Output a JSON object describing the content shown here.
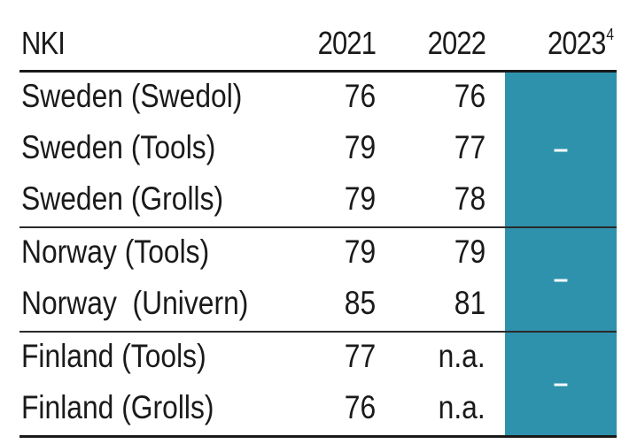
{
  "table": {
    "headers": {
      "label": "NKI",
      "y2021": "2021",
      "y2022": "2022",
      "y2023": "2023",
      "y2023_footnote": "4"
    },
    "groups": [
      {
        "rows": [
          {
            "name": "Sweden (Swedol)",
            "y2021": "76",
            "y2022": "76"
          },
          {
            "name": "Sweden (Tools)",
            "y2021": "79",
            "y2022": "77"
          },
          {
            "name": "Sweden (Grolls)",
            "y2021": "79",
            "y2022": "78"
          }
        ],
        "y2023": "–"
      },
      {
        "rows": [
          {
            "name": "Norway (Tools)",
            "y2021": "79",
            "y2022": "79"
          },
          {
            "name": "Norway  (Univern)",
            "y2021": "85",
            "y2022": "81"
          }
        ],
        "y2023": "–"
      },
      {
        "rows": [
          {
            "name": "Finland (Tools)",
            "y2021": "77",
            "y2022": "n.a."
          },
          {
            "name": "Finland (Grolls)",
            "y2021": "76",
            "y2022": "n.a."
          }
        ],
        "y2023": "–"
      }
    ],
    "colors": {
      "highlight_column": "#2e92ad",
      "text": "#1a1a1a"
    }
  }
}
